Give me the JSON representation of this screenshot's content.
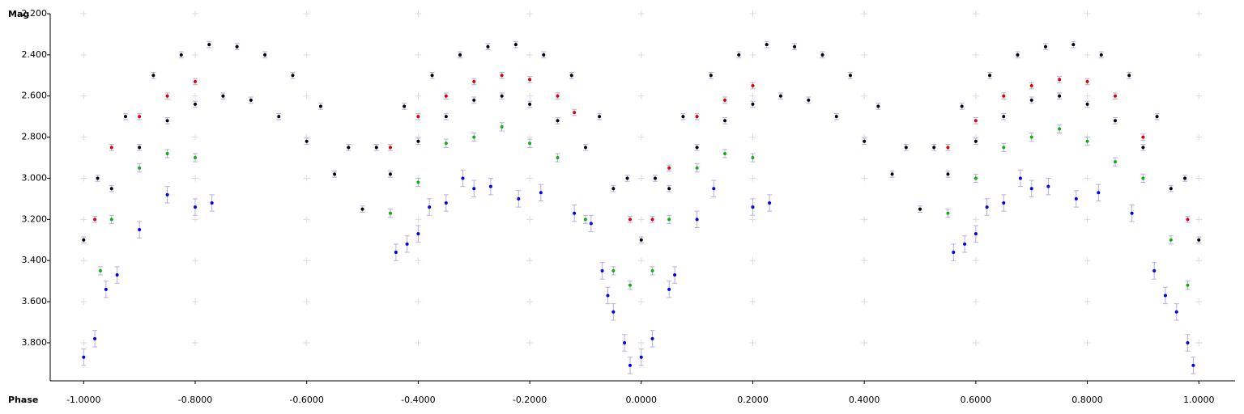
{
  "chart_data": {
    "type": "scatter",
    "x_label": "Phase",
    "y_label": "Mag",
    "y_inverted": true,
    "grid": true,
    "xlim": [
      -1.06,
      1.065
    ],
    "ylim": [
      2.2,
      3.985
    ],
    "xticks": [
      {
        "value": -1.0,
        "label": "-1.0000"
      },
      {
        "value": -0.8,
        "label": "-0.8000"
      },
      {
        "value": -0.6,
        "label": "-0.6000"
      },
      {
        "value": -0.4,
        "label": "-0.4000"
      },
      {
        "value": -0.2,
        "label": "-0.2000"
      },
      {
        "value": 0,
        "label": "0.0000"
      },
      {
        "value": 0.2,
        "label": "0.2000"
      },
      {
        "value": 0.4,
        "label": "0.4000"
      },
      {
        "value": 0.6,
        "label": "0.6000"
      },
      {
        "value": 0.8,
        "label": "0.8000"
      },
      {
        "value": 1.0,
        "label": "1.0000"
      }
    ],
    "yticks": [
      {
        "value": 2.2,
        "label": "2.200"
      },
      {
        "value": 2.4,
        "label": "2.400"
      },
      {
        "value": 2.6,
        "label": "2.600"
      },
      {
        "value": 2.8,
        "label": "2.800"
      },
      {
        "value": 3.0,
        "label": "3.000"
      },
      {
        "value": 3.2,
        "label": "3.200"
      },
      {
        "value": 3.4,
        "label": "3.400"
      },
      {
        "value": 3.6,
        "label": "3.600"
      },
      {
        "value": 3.8,
        "label": "3.800"
      }
    ],
    "error_color": "#b4b0e0",
    "series": [
      {
        "color": "#000000",
        "error": 0.015,
        "x": [
          -1.0,
          -0.95,
          -0.9,
          -0.85,
          -0.8,
          -0.75,
          -0.7,
          -0.65,
          -0.6,
          -0.55,
          -0.5,
          -0.45,
          -0.4,
          -0.35,
          -0.3,
          -0.25,
          -0.2,
          -0.15,
          -0.1,
          -0.05,
          0,
          0.05,
          0.1,
          0.15,
          0.2,
          0.25,
          0.3,
          0.35,
          0.4,
          0.45,
          0.5,
          0.55,
          0.6,
          0.65,
          0.7,
          0.75,
          0.8,
          0.85,
          0.9,
          0.95,
          1.0
        ],
        "values": [
          3.3,
          3.05,
          2.85,
          2.72,
          2.64,
          2.6,
          2.62,
          2.7,
          2.82,
          2.98,
          3.15,
          2.98,
          2.82,
          2.7,
          2.62,
          2.6,
          2.64,
          2.72,
          2.85,
          3.05,
          3.3,
          3.05,
          2.85,
          2.72,
          2.64,
          2.6,
          2.62,
          2.7,
          2.82,
          2.98,
          3.15,
          2.98,
          2.82,
          2.7,
          2.62,
          2.6,
          2.64,
          2.72,
          2.85,
          3.05,
          3.3
        ]
      },
      {
        "color": "#000000",
        "error": 0.015,
        "x": [
          -0.975,
          -0.925,
          -0.875,
          -0.825,
          -0.775,
          -0.725,
          -0.675,
          -0.625,
          -0.575,
          -0.525,
          -0.475,
          -0.425,
          -0.375,
          -0.325,
          -0.275,
          -0.225,
          -0.175,
          -0.125,
          -0.075,
          -0.025,
          0.025,
          0.075,
          0.125,
          0.175,
          0.225,
          0.275,
          0.325,
          0.375,
          0.425,
          0.475,
          0.525,
          0.575,
          0.625,
          0.675,
          0.725,
          0.775,
          0.825,
          0.875,
          0.925,
          0.975
        ],
        "values": [
          3.0,
          2.7,
          2.5,
          2.4,
          2.35,
          2.36,
          2.4,
          2.5,
          2.65,
          2.85,
          2.85,
          2.65,
          2.5,
          2.4,
          2.36,
          2.35,
          2.4,
          2.5,
          2.7,
          3.0,
          3.0,
          2.7,
          2.5,
          2.4,
          2.35,
          2.36,
          2.4,
          2.5,
          2.65,
          2.85,
          2.85,
          2.65,
          2.5,
          2.4,
          2.36,
          2.35,
          2.4,
          2.5,
          2.7,
          3.0
        ]
      },
      {
        "color": "#e00000",
        "error": 0.015,
        "x": [
          -0.98,
          -0.95,
          -0.9,
          -0.85,
          -0.8,
          -0.45,
          -0.4,
          -0.35,
          -0.3,
          -0.25,
          -0.2,
          -0.15,
          -0.12,
          -0.02,
          0.02,
          0.05,
          0.1,
          0.15,
          0.2,
          0.55,
          0.6,
          0.65,
          0.7,
          0.75,
          0.8,
          0.85,
          0.9,
          0.98
        ],
        "values": [
          3.2,
          2.85,
          2.7,
          2.6,
          2.53,
          2.85,
          2.7,
          2.6,
          2.53,
          2.5,
          2.52,
          2.6,
          2.68,
          3.2,
          3.2,
          2.95,
          2.7,
          2.62,
          2.55,
          2.85,
          2.72,
          2.6,
          2.55,
          2.52,
          2.53,
          2.6,
          2.8,
          3.2
        ]
      },
      {
        "color": "#10b010",
        "error": 0.02,
        "x": [
          -0.97,
          -0.95,
          -0.9,
          -0.85,
          -0.8,
          -0.45,
          -0.4,
          -0.35,
          -0.3,
          -0.25,
          -0.2,
          -0.15,
          -0.1,
          -0.05,
          -0.02,
          0.02,
          0.05,
          0.1,
          0.15,
          0.2,
          0.55,
          0.6,
          0.65,
          0.7,
          0.75,
          0.8,
          0.85,
          0.9,
          0.95,
          0.98
        ],
        "values": [
          3.45,
          3.2,
          2.95,
          2.88,
          2.9,
          3.17,
          3.02,
          2.83,
          2.8,
          2.75,
          2.83,
          2.9,
          3.2,
          3.45,
          3.52,
          3.45,
          3.2,
          2.95,
          2.88,
          2.9,
          3.17,
          3.0,
          2.85,
          2.8,
          2.76,
          2.82,
          2.92,
          3.0,
          3.3,
          3.52
        ]
      },
      {
        "color": "#0000e0",
        "error": 0.04,
        "x": [
          -1.0,
          -0.98,
          -0.96,
          -0.94,
          -0.9,
          -0.85,
          -0.8,
          -0.77,
          -0.44,
          -0.42,
          -0.4,
          -0.38,
          -0.35,
          -0.32,
          -0.3,
          -0.27,
          -0.22,
          -0.18,
          -0.12,
          -0.09,
          -0.07,
          -0.06,
          -0.05,
          -0.03,
          -0.02,
          0.0,
          0.02,
          0.05,
          0.06,
          0.1,
          0.13,
          0.2,
          0.23,
          0.56,
          0.58,
          0.6,
          0.62,
          0.65,
          0.68,
          0.7,
          0.73,
          0.78,
          0.82,
          0.88,
          0.92,
          0.94,
          0.96,
          0.98,
          0.99
        ],
        "values": [
          3.87,
          3.78,
          3.54,
          3.47,
          3.25,
          3.08,
          3.14,
          3.12,
          3.36,
          3.32,
          3.27,
          3.14,
          3.12,
          3.0,
          3.05,
          3.04,
          3.1,
          3.07,
          3.17,
          3.22,
          3.45,
          3.57,
          3.65,
          3.8,
          3.91,
          3.87,
          3.78,
          3.54,
          3.47,
          3.2,
          3.05,
          3.14,
          3.12,
          3.36,
          3.32,
          3.27,
          3.14,
          3.12,
          3.0,
          3.05,
          3.04,
          3.1,
          3.07,
          3.17,
          3.45,
          3.57,
          3.65,
          3.8,
          3.91
        ]
      }
    ]
  }
}
